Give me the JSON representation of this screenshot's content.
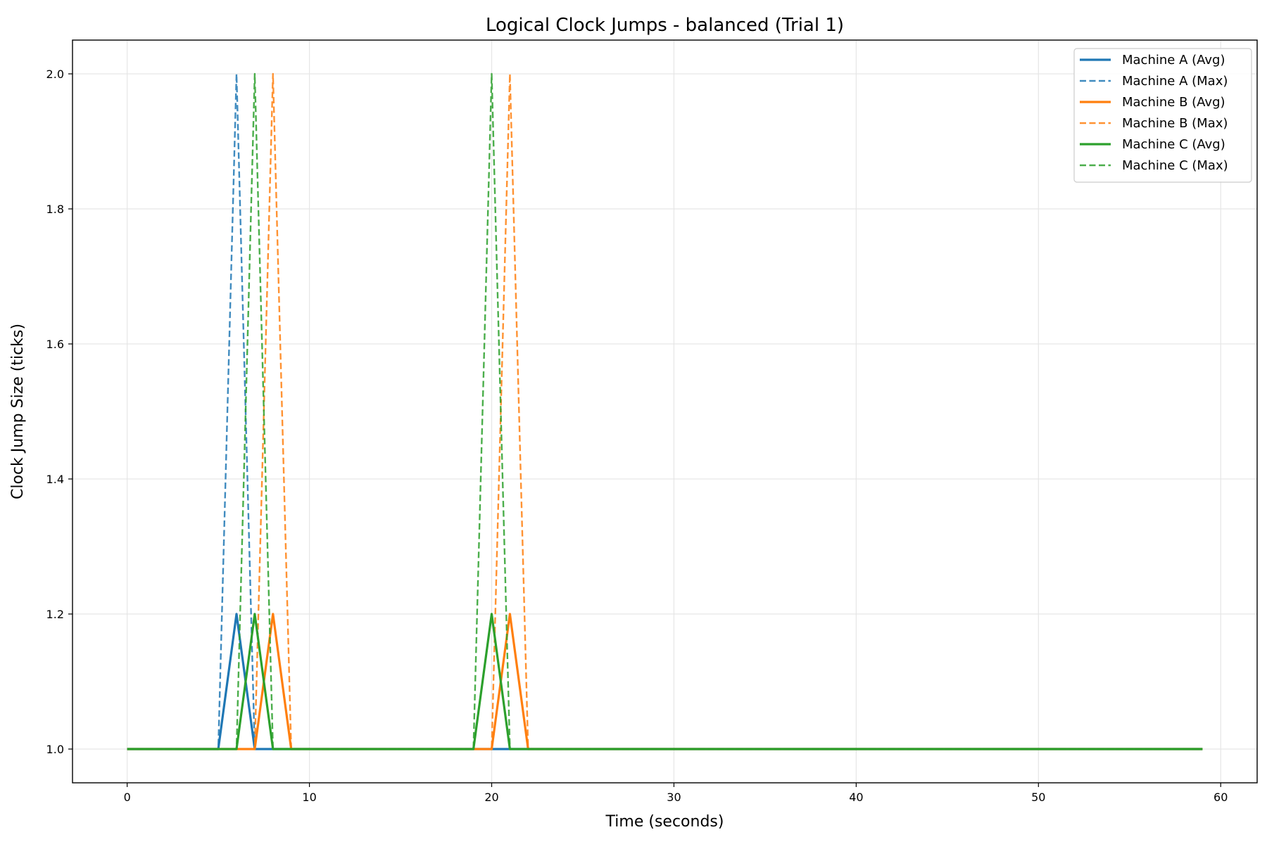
{
  "chart_data": {
    "type": "line",
    "title": "Logical Clock Jumps - balanced (Trial 1)",
    "xlabel": "Time (seconds)",
    "ylabel": "Clock Jump Size (ticks)",
    "xlim": [
      -3,
      62
    ],
    "ylim": [
      0.95,
      2.05
    ],
    "xticks": [
      0,
      10,
      20,
      30,
      40,
      50,
      60
    ],
    "yticks": [
      1.0,
      1.2,
      1.4,
      1.6,
      1.8,
      2.0
    ],
    "xtick_labels": [
      "0",
      "10",
      "20",
      "30",
      "40",
      "50",
      "60"
    ],
    "ytick_labels": [
      "1.0",
      "1.2",
      "1.4",
      "1.6",
      "1.8",
      "2.0"
    ],
    "grid": true,
    "legend_position": "top-right",
    "series": [
      {
        "name": "Machine A (Avg)",
        "color": "#1f77b4",
        "style": "solid",
        "x": [
          0,
          5,
          6,
          7,
          59
        ],
        "y": [
          1.0,
          1.0,
          1.2,
          1.0,
          1.0
        ]
      },
      {
        "name": "Machine A (Max)",
        "color": "#1f77b4",
        "style": "dashed",
        "x": [
          0,
          5,
          6,
          7,
          59
        ],
        "y": [
          1.0,
          1.0,
          2.0,
          1.0,
          1.0
        ]
      },
      {
        "name": "Machine B (Avg)",
        "color": "#ff7f0e",
        "style": "solid",
        "x": [
          0,
          7,
          8,
          9,
          20,
          21,
          22,
          59
        ],
        "y": [
          1.0,
          1.0,
          1.2,
          1.0,
          1.0,
          1.2,
          1.0,
          1.0
        ]
      },
      {
        "name": "Machine B (Max)",
        "color": "#ff7f0e",
        "style": "dashed",
        "x": [
          0,
          7,
          8,
          9,
          20,
          21,
          22,
          59
        ],
        "y": [
          1.0,
          1.0,
          2.0,
          1.0,
          1.0,
          2.0,
          1.0,
          1.0
        ]
      },
      {
        "name": "Machine C (Avg)",
        "color": "#2ca02c",
        "style": "solid",
        "x": [
          0,
          6,
          7,
          8,
          19,
          20,
          21,
          59
        ],
        "y": [
          1.0,
          1.0,
          1.2,
          1.0,
          1.0,
          1.2,
          1.0,
          1.0
        ]
      },
      {
        "name": "Machine C (Max)",
        "color": "#2ca02c",
        "style": "dashed",
        "x": [
          0,
          6,
          7,
          8,
          19,
          20,
          21,
          59
        ],
        "y": [
          1.0,
          1.0,
          2.0,
          1.0,
          1.0,
          2.0,
          1.0,
          1.0
        ]
      }
    ]
  }
}
